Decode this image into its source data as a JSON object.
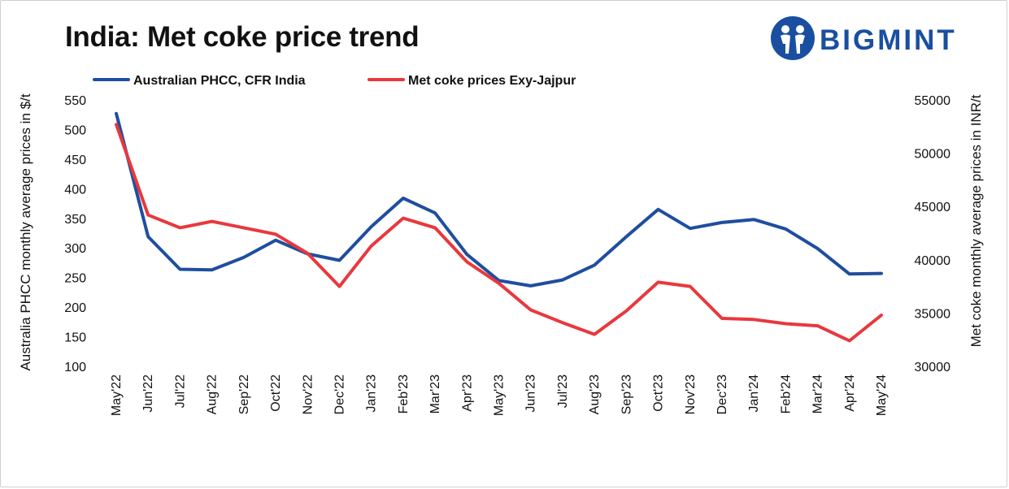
{
  "title": "India: Met coke price trend",
  "brand": {
    "name": "BIGMINT",
    "color": "#1a4fa0",
    "icon": "bigmint-logo-icon"
  },
  "chart_data": {
    "type": "line",
    "categories": [
      "May'22",
      "Jun'22",
      "Jul'22",
      "Aug'22",
      "Sep'22",
      "Oct'22",
      "Nov'22",
      "Dec'22",
      "Jan'23",
      "Feb'23",
      "Mar'23",
      "Apr'23",
      "May'23",
      "Jun'23",
      "Jul'23",
      "Aug'23",
      "Sep'23",
      "Oct'23",
      "Nov'23",
      "Dec'23",
      "Jan'24",
      "Feb'24",
      "Mar'24",
      "Apr'24",
      "May'24"
    ],
    "series": [
      {
        "name": "Australian PHCC, CFR India",
        "axis": "left",
        "color": "#1f4e9e",
        "values": [
          527,
          319,
          264,
          263,
          284,
          313,
          290,
          279,
          336,
          384,
          359,
          289,
          245,
          236,
          246,
          271,
          319,
          365,
          333,
          343,
          348,
          332,
          299,
          256,
          257
        ]
      },
      {
        "name": "Met coke prices Exy-Jajpur",
        "axis": "right",
        "color": "#e8383d",
        "values": [
          52700,
          44200,
          43000,
          43600,
          43000,
          42400,
          40600,
          37500,
          41300,
          43900,
          43000,
          39800,
          37800,
          35300,
          34100,
          33000,
          35200,
          37900,
          37500,
          34500,
          34400,
          34000,
          33800,
          32400,
          34800
        ]
      }
    ],
    "y_left": {
      "label": "Australia PHCC monthly average prices in $/t",
      "min": 100,
      "max": 550,
      "ticks": [
        100,
        150,
        200,
        250,
        300,
        350,
        400,
        450,
        500,
        550
      ]
    },
    "y_right": {
      "label": "Met coke monthly average prices in INR/t",
      "min": 30000,
      "max": 55000,
      "ticks": [
        30000,
        35000,
        40000,
        45000,
        50000,
        55000
      ]
    },
    "grid": false,
    "legend": "top-left"
  }
}
